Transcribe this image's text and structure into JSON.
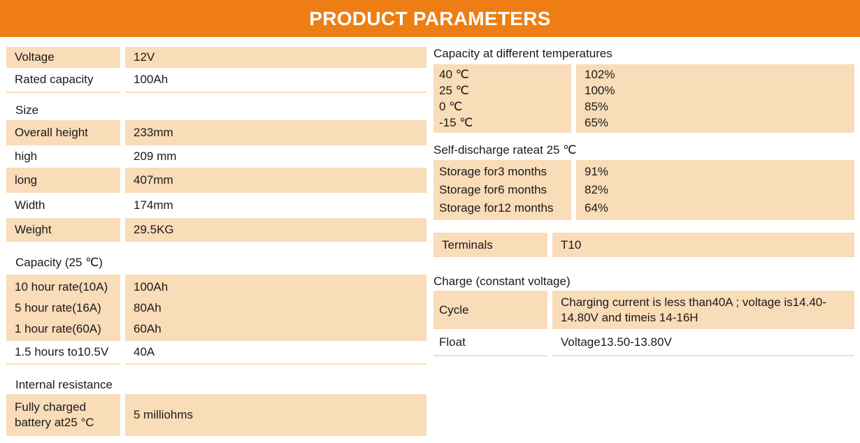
{
  "header": {
    "title": "PRODUCT PARAMETERS"
  },
  "left": {
    "voltage": {
      "label": "Voltage",
      "value": "12V"
    },
    "rated_capacity": {
      "label": "Rated capacity",
      "value": "100Ah"
    },
    "size_heading": "Size",
    "overall_height": {
      "label": "Overall height",
      "value": "233mm"
    },
    "high": {
      "label": "high",
      "value": "209 mm"
    },
    "long": {
      "label": "long",
      "value": "407mm"
    },
    "width": {
      "label": "Width",
      "value": "174mm"
    },
    "weight": {
      "label": "Weight",
      "value": "29.5KG"
    },
    "capacity_heading": "Capacity (25 ℃)",
    "capacity_rates": [
      {
        "label": "10 hour rate(10A)",
        "value": "100Ah"
      },
      {
        "label": "5 hour rate(16A)",
        "value": "80Ah"
      },
      {
        "label": "1 hour rate(60A)",
        "value": "60Ah"
      }
    ],
    "rate_1_5h": {
      "label": "1.5 hours to10.5V",
      "value": "40A"
    },
    "internal_heading": "Internal resistance",
    "internal": {
      "label_line1": "Fully charged",
      "label_line2": "battery at25 °C",
      "value": "5 milliohms"
    }
  },
  "right": {
    "temp_heading": "Capacity at different temperatures",
    "temps": [
      {
        "label": "40 ℃",
        "value": "102%"
      },
      {
        "label": "25 ℃",
        "value": "100%"
      },
      {
        "label": "0 ℃",
        "value": "85%"
      },
      {
        "label": "-15 ℃",
        "value": "65%"
      }
    ],
    "selfdis_heading": "Self-discharge rateat 25 ℃",
    "selfdis": [
      {
        "label": "Storage for3 months",
        "value": "91%"
      },
      {
        "label": "Storage for6 months",
        "value": "82%"
      },
      {
        "label": "Storage for12 months",
        "value": "64%"
      }
    ],
    "terminals": {
      "label": "Terminals",
      "value": "T10"
    },
    "charge_heading": "Charge (constant voltage)",
    "cycle": {
      "label": "Cycle",
      "value_line1": "Charging current is less than40A ; voltage is14.40-",
      "value_line2": "14.80V and timeis 14-16H"
    },
    "float": {
      "label": "Float",
      "value": "Voltage13.50-13.80V"
    }
  },
  "colors": {
    "header": "#ee7e14",
    "fill": "#f9dcb8"
  }
}
